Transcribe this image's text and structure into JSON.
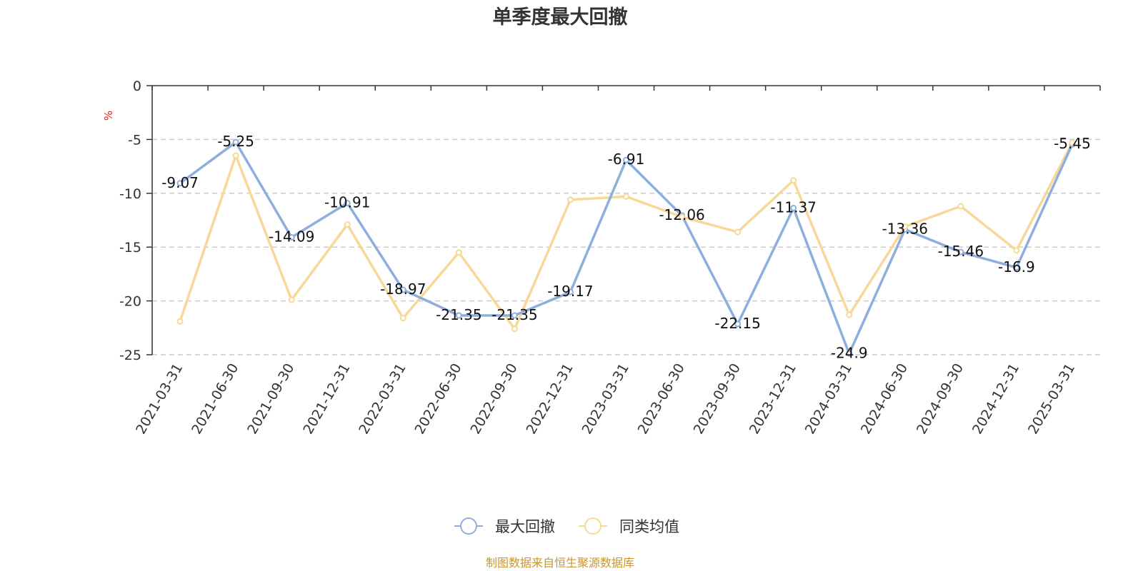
{
  "colors": {
    "series_1": "#8eaedd",
    "series_2": "#f8d896",
    "unit": "#e02020",
    "source": "#c8962e",
    "grid": "#cccccc",
    "axis": "#333333"
  },
  "source_note": "制图数据来自恒生聚源数据库",
  "chart_data": {
    "type": "line",
    "title": "单季度最大回撤",
    "ylabel": "%",
    "xlabel": "",
    "ylim": [
      -25,
      0
    ],
    "yticks": [
      0,
      -5,
      -10,
      -15,
      -20,
      -25
    ],
    "grid": true,
    "legend_position": "bottom-center",
    "categories": [
      "2021-03-31",
      "2021-06-30",
      "2021-09-30",
      "2021-12-31",
      "2022-03-31",
      "2022-06-30",
      "2022-09-30",
      "2022-12-31",
      "2023-03-31",
      "2023-06-30",
      "2023-09-30",
      "2023-12-31",
      "2024-03-31",
      "2024-06-30",
      "2024-09-30",
      "2024-12-31",
      "2025-03-31"
    ],
    "series": [
      {
        "name": "最大回撤",
        "color": "#8eaedd",
        "values": [
          -9.07,
          -5.25,
          -14.09,
          -10.91,
          -18.97,
          -21.35,
          -21.35,
          -19.17,
          -6.91,
          -12.06,
          -22.15,
          -11.37,
          -24.9,
          -13.36,
          -15.46,
          -16.9,
          -5.45
        ],
        "data_labels": [
          "-9.07",
          "-5.25",
          "-14.09",
          "-10.91",
          "-18.97",
          "-21.35",
          "-21.35",
          "-19.17",
          "-6.91",
          "-12.06",
          "-22.15",
          "-11.37",
          "-24.9",
          "-13.36",
          "-15.46",
          "-16.9",
          "-5.45"
        ]
      },
      {
        "name": "同类均值",
        "color": "#f8d896",
        "values": [
          -21.9,
          -6.5,
          -19.9,
          -12.9,
          -21.6,
          -15.5,
          -22.6,
          -10.6,
          -10.3,
          -12.2,
          -13.6,
          -8.8,
          -21.3,
          -13.1,
          -11.2,
          -15.3,
          -5.3
        ]
      }
    ]
  }
}
